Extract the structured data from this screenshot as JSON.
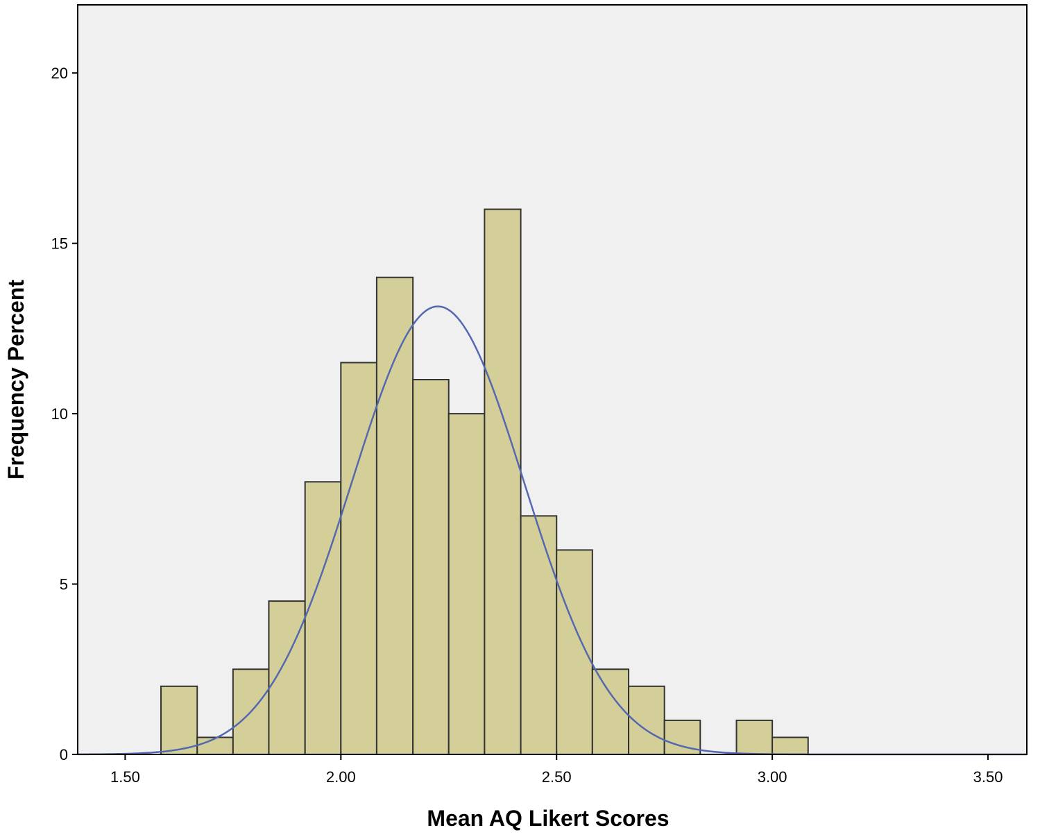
{
  "chart_data": {
    "type": "bar",
    "subtype": "histogram",
    "title": "",
    "xlabel": "Mean AQ Likert Scores",
    "ylabel": "Frequency Percent",
    "xlim": [
      1.39,
      3.59
    ],
    "ylim": [
      0,
      22
    ],
    "xticks": [
      1.5,
      2.0,
      2.5,
      3.0,
      3.5
    ],
    "xtick_labels": [
      "1.50",
      "2.00",
      "2.50",
      "3.00",
      "3.50"
    ],
    "yticks": [
      0,
      5,
      10,
      15,
      20
    ],
    "ytick_labels": [
      "0",
      "5",
      "10",
      "15",
      "20"
    ],
    "bins": [
      {
        "x0": 1.583,
        "x1": 1.667,
        "value": 2.0
      },
      {
        "x0": 1.667,
        "x1": 1.75,
        "value": 0.5
      },
      {
        "x0": 1.75,
        "x1": 1.833,
        "value": 2.5
      },
      {
        "x0": 1.833,
        "x1": 1.917,
        "value": 4.5
      },
      {
        "x0": 1.917,
        "x1": 2.0,
        "value": 8.0
      },
      {
        "x0": 2.0,
        "x1": 2.083,
        "value": 11.5
      },
      {
        "x0": 2.083,
        "x1": 2.167,
        "value": 14.0
      },
      {
        "x0": 2.167,
        "x1": 2.25,
        "value": 11.0
      },
      {
        "x0": 2.25,
        "x1": 2.333,
        "value": 10.0
      },
      {
        "x0": 2.333,
        "x1": 2.417,
        "value": 16.0
      },
      {
        "x0": 2.417,
        "x1": 2.5,
        "value": 7.0
      },
      {
        "x0": 2.5,
        "x1": 2.583,
        "value": 6.0
      },
      {
        "x0": 2.583,
        "x1": 2.667,
        "value": 2.5
      },
      {
        "x0": 2.667,
        "x1": 2.75,
        "value": 2.0
      },
      {
        "x0": 2.75,
        "x1": 2.833,
        "value": 1.0
      },
      {
        "x0": 2.917,
        "x1": 3.0,
        "value": 1.0
      },
      {
        "x0": 3.0,
        "x1": 3.083,
        "value": 0.5
      }
    ],
    "normal_curve": {
      "mean": 2.225,
      "sd": 0.2,
      "peak": 13.15
    },
    "grid": false,
    "colors": {
      "plot_background": "#f0f0f0",
      "bar_fill": "#d4cf98",
      "bar_stroke": "#333333",
      "curve": "#5468b0",
      "axis": "#000000"
    }
  }
}
